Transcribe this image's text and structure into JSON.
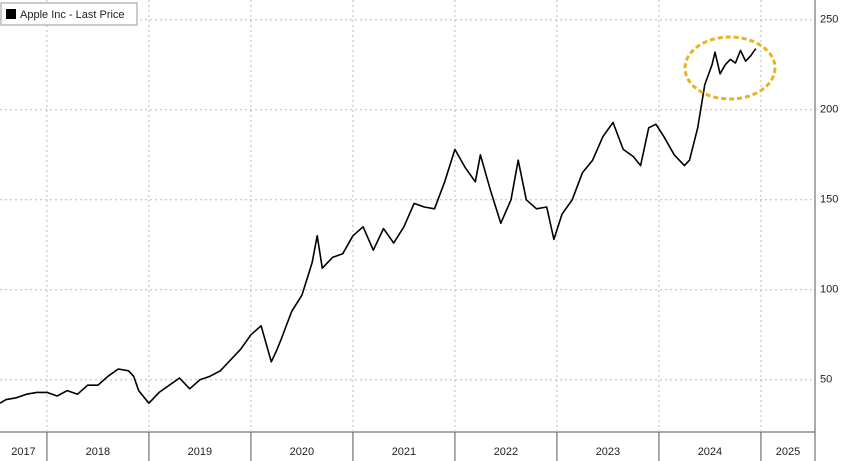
{
  "chart_data": {
    "type": "line",
    "x": [
      2017.54,
      2017.6,
      2017.7,
      2017.8,
      2017.9,
      2018.0,
      2018.1,
      2018.2,
      2018.3,
      2018.4,
      2018.5,
      2018.6,
      2018.7,
      2018.8,
      2018.85,
      2018.9,
      2019.0,
      2019.1,
      2019.2,
      2019.3,
      2019.4,
      2019.5,
      2019.6,
      2019.7,
      2019.8,
      2019.9,
      2020.0,
      2020.1,
      2020.2,
      2020.25,
      2020.3,
      2020.4,
      2020.5,
      2020.6,
      2020.65,
      2020.7,
      2020.8,
      2020.9,
      2021.0,
      2021.1,
      2021.2,
      2021.3,
      2021.4,
      2021.5,
      2021.6,
      2021.7,
      2021.8,
      2021.9,
      2022.0,
      2022.1,
      2022.2,
      2022.25,
      2022.35,
      2022.45,
      2022.55,
      2022.62,
      2022.7,
      2022.8,
      2022.9,
      2022.97,
      2023.05,
      2023.15,
      2023.25,
      2023.35,
      2023.45,
      2023.55,
      2023.65,
      2023.75,
      2023.82,
      2023.9,
      2023.97,
      2024.05,
      2024.15,
      2024.25,
      2024.3,
      2024.38,
      2024.45,
      2024.52,
      2024.55,
      2024.6,
      2024.65,
      2024.7,
      2024.75,
      2024.8,
      2024.85,
      2024.9,
      2024.95
    ],
    "series": [
      {
        "name": "Apple Inc - Last Price",
        "color": "#000000",
        "values": [
          37,
          39,
          40,
          42,
          43,
          43,
          41,
          44,
          42,
          47,
          47,
          52,
          56,
          55,
          52,
          44,
          37,
          43,
          47,
          51,
          45,
          50,
          52,
          55,
          61,
          67,
          75,
          80,
          60,
          66,
          73,
          88,
          97,
          115,
          130,
          112,
          118,
          120,
          130,
          135,
          122,
          134,
          126,
          135,
          148,
          146,
          145,
          160,
          178,
          168,
          160,
          175,
          155,
          137,
          150,
          172,
          150,
          145,
          146,
          128,
          142,
          150,
          165,
          172,
          185,
          193,
          178,
          174,
          169,
          190,
          192,
          185,
          175,
          169,
          172,
          190,
          214,
          225,
          232,
          220,
          225,
          228,
          226,
          233,
          227,
          230,
          234
        ]
      }
    ],
    "xlim": [
      2017.54,
      2025.53
    ],
    "xticks": [
      2017,
      2018,
      2019,
      2020,
      2021,
      2022,
      2023,
      2024,
      2025
    ],
    "ylim": [
      21,
      261
    ],
    "yticks": [
      50,
      100,
      150,
      200,
      250
    ],
    "grid": true
  }
}
